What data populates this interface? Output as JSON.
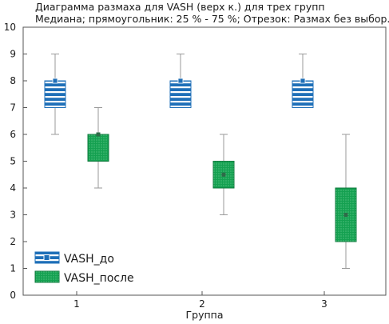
{
  "chart_data": {
    "type": "boxplot",
    "title_line1": "Диаграмма размаха для VASH (верх к.) для трех групп",
    "title_line2": "Медиана; прямоугольник: 25 % - 75 %; Отрезок: Размах без выбор.",
    "xlabel": "Группа",
    "ylabel": "",
    "categories": [
      "1",
      "2",
      "3"
    ],
    "ylim": [
      0,
      10
    ],
    "yticks": [
      0,
      1,
      2,
      3,
      4,
      5,
      6,
      7,
      8,
      9,
      10
    ],
    "grid": false,
    "legend_position": "bottom-left",
    "series": [
      {
        "name": "VASH_до",
        "color": "#1e6fb8",
        "fill_pattern": "horizontal-stripes",
        "boxes": [
          {
            "min": 6,
            "q1": 7,
            "median": 8,
            "q3": 8,
            "max": 9
          },
          {
            "min": 7,
            "q1": 7,
            "median": 8,
            "q3": 8,
            "max": 9
          },
          {
            "min": 7,
            "q1": 7,
            "median": 8,
            "q3": 8,
            "max": 9
          }
        ]
      },
      {
        "name": "VASH_после",
        "color": "#14a050",
        "fill_pattern": "dotted",
        "boxes": [
          {
            "min": 4,
            "q1": 5,
            "median": 6,
            "q3": 6,
            "max": 7
          },
          {
            "min": 3,
            "q1": 4,
            "median": 4.5,
            "q3": 5,
            "max": 6
          },
          {
            "min": 1,
            "q1": 2,
            "median": 3,
            "q3": 4,
            "max": 6
          }
        ]
      }
    ]
  }
}
